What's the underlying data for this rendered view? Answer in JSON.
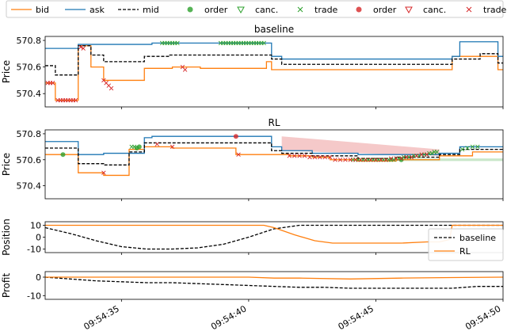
{
  "colors": {
    "bid": "#ff7f0e",
    "ask": "#1f77b4",
    "mid": "#000000",
    "green": "#2ca02c",
    "red": "#d62728"
  },
  "legend": {
    "items": [
      {
        "label": "bid",
        "kind": "line",
        "color": "#ff7f0e"
      },
      {
        "label": "ask",
        "kind": "line",
        "color": "#1f77b4"
      },
      {
        "label": "mid",
        "kind": "dash",
        "color": "#000000"
      },
      {
        "label": "order",
        "kind": "circle",
        "color": "#2ca02c"
      },
      {
        "label": "canc.",
        "kind": "tri",
        "color": "#2ca02c"
      },
      {
        "label": "trade",
        "kind": "x",
        "color": "#2ca02c"
      },
      {
        "label": "order",
        "kind": "circle",
        "color": "#d62728"
      },
      {
        "label": "canc.",
        "kind": "tri",
        "color": "#d62728"
      },
      {
        "label": "trade",
        "kind": "x",
        "color": "#d62728"
      }
    ]
  },
  "chart_data": [
    {
      "type": "line",
      "title": "baseline",
      "ylabel": "Price",
      "ylim": [
        570.3,
        570.83
      ],
      "yticks": [
        "570.4",
        "570.6",
        "570.8"
      ],
      "series": [
        {
          "name": "bid",
          "x": [
            32,
            32.4,
            32.4,
            33.3,
            33.3,
            33.8,
            33.8,
            34.3,
            34.3,
            35.9,
            35.9,
            37.0,
            37.0,
            38.1,
            38.1,
            40.7,
            40.7,
            40.9,
            40.9,
            48.0,
            48.0,
            49.8,
            49.8,
            50.0
          ],
          "y": [
            570.48,
            570.48,
            570.35,
            570.35,
            570.76,
            570.76,
            570.6,
            570.6,
            570.5,
            570.5,
            570.59,
            570.59,
            570.6,
            570.6,
            570.59,
            570.59,
            570.64,
            570.64,
            570.58,
            570.58,
            570.68,
            570.68,
            570.58,
            570.58
          ]
        },
        {
          "name": "ask",
          "x": [
            32,
            33.3,
            33.3,
            36.2,
            36.2,
            40.9,
            40.9,
            41.3,
            41.3,
            48.0,
            48.0,
            48.3,
            48.3,
            49.8,
            49.8,
            50.0
          ],
          "y": [
            570.74,
            570.74,
            570.77,
            570.77,
            570.78,
            570.78,
            570.68,
            570.68,
            570.66,
            570.66,
            570.68,
            570.68,
            570.79,
            570.79,
            570.68,
            570.68
          ]
        },
        {
          "name": "mid",
          "x": [
            32,
            32.4,
            32.4,
            33.3,
            33.3,
            33.8,
            33.8,
            34.3,
            34.3,
            35.9,
            35.9,
            36.2,
            36.2,
            36.9,
            36.9,
            40.9,
            40.9,
            41.3,
            41.3,
            48.0,
            48.0,
            49.1,
            49.1,
            49.8,
            49.8,
            50.0
          ],
          "y": [
            570.61,
            570.61,
            570.54,
            570.54,
            570.76,
            570.76,
            570.69,
            570.69,
            570.64,
            570.64,
            570.68,
            570.68,
            570.68,
            570.68,
            570.69,
            570.69,
            570.66,
            570.66,
            570.62,
            570.62,
            570.66,
            570.66,
            570.7,
            570.7,
            570.63,
            570.63
          ]
        }
      ],
      "markers": [
        {
          "series": "green trade",
          "kind": "x",
          "x": [
            36.6,
            36.7,
            36.8,
            36.9,
            37.0,
            37.1,
            37.2,
            38.9,
            39.0,
            39.1,
            39.2,
            39.3,
            39.4,
            39.5,
            39.6,
            39.7,
            39.8,
            39.9,
            40.0,
            40.1,
            40.2,
            40.3,
            40.4,
            40.5,
            40.6
          ],
          "y": [
            570.78,
            570.78,
            570.78,
            570.78,
            570.78,
            570.78,
            570.78,
            570.78,
            570.78,
            570.78,
            570.78,
            570.78,
            570.78,
            570.78,
            570.78,
            570.78,
            570.78,
            570.78,
            570.78,
            570.78,
            570.78,
            570.78,
            570.78,
            570.78,
            570.78
          ]
        },
        {
          "series": "red trade",
          "kind": "x",
          "x": [
            32.1,
            32.2,
            32.3,
            32.5,
            32.6,
            32.7,
            32.8,
            32.9,
            33.0,
            33.1,
            33.2,
            33.4,
            33.5,
            34.3,
            34.4,
            34.5,
            34.6,
            37.4,
            37.5
          ],
          "y": [
            570.48,
            570.48,
            570.48,
            570.35,
            570.35,
            570.35,
            570.35,
            570.35,
            570.35,
            570.35,
            570.35,
            570.75,
            570.74,
            570.5,
            570.48,
            570.46,
            570.44,
            570.6,
            570.58
          ]
        }
      ]
    },
    {
      "type": "line",
      "title": "RL",
      "ylabel": "Price",
      "ylim": [
        570.3,
        570.83
      ],
      "yticks": [
        "570.4",
        "570.6",
        "570.8"
      ],
      "series": [
        {
          "name": "bid",
          "x": [
            32,
            33.3,
            33.3,
            34.3,
            34.3,
            35.3,
            35.3,
            35.9,
            35.9,
            37.0,
            37.0,
            39.5,
            39.5,
            40.9,
            40.9,
            41.6,
            41.6,
            42.5,
            42.5,
            43.2,
            43.2,
            44.3,
            44.3,
            45.8,
            45.8,
            47.5,
            47.5,
            48.8,
            48.8,
            50.0
          ],
          "y": [
            570.64,
            570.64,
            570.5,
            570.5,
            570.48,
            570.48,
            570.68,
            570.68,
            570.7,
            570.7,
            570.69,
            570.69,
            570.64,
            570.64,
            570.64,
            570.64,
            570.63,
            570.63,
            570.62,
            570.62,
            570.6,
            570.6,
            570.59,
            570.59,
            570.6,
            570.6,
            570.63,
            570.63,
            570.66,
            570.66
          ]
        },
        {
          "name": "ask",
          "x": [
            32,
            33.3,
            33.3,
            34.3,
            34.3,
            35.9,
            35.9,
            36.2,
            36.2,
            40.9,
            40.9,
            41.3,
            41.3,
            42.5,
            42.5,
            44.3,
            44.3,
            47.5,
            47.5,
            48.3,
            48.3,
            50.0
          ],
          "y": [
            570.74,
            570.74,
            570.64,
            570.64,
            570.65,
            570.65,
            570.77,
            570.77,
            570.78,
            570.78,
            570.7,
            570.7,
            570.67,
            570.67,
            570.65,
            570.65,
            570.64,
            570.64,
            570.65,
            570.65,
            570.7,
            570.7
          ]
        },
        {
          "name": "mid",
          "x": [
            32,
            33.3,
            33.3,
            34.3,
            34.3,
            35.3,
            35.3,
            35.9,
            35.9,
            36.2,
            36.2,
            40.9,
            40.9,
            41.3,
            41.3,
            42.5,
            42.5,
            44.3,
            44.3,
            45.8,
            45.8,
            47.5,
            47.5,
            48.3,
            48.3,
            50.0
          ],
          "y": [
            570.69,
            570.69,
            570.57,
            570.57,
            570.56,
            570.56,
            570.66,
            570.66,
            570.73,
            570.73,
            570.73,
            570.73,
            570.67,
            570.67,
            570.65,
            570.65,
            570.63,
            570.63,
            570.61,
            570.61,
            570.62,
            570.62,
            570.64,
            570.64,
            570.68,
            570.68
          ]
        }
      ],
      "markers": [
        {
          "series": "green order",
          "kind": "circle",
          "x": [
            32.7,
            35.6,
            35.7,
            46.0
          ],
          "y": [
            570.64,
            570.69,
            570.7,
            570.6
          ]
        },
        {
          "series": "green trade",
          "kind": "x",
          "x": [
            35.4,
            35.5,
            44.1,
            44.2,
            44.3,
            44.4,
            44.5,
            44.6,
            44.7,
            44.8,
            44.9,
            45.0,
            45.1,
            45.2,
            45.3,
            45.4,
            45.5,
            45.6,
            45.7,
            45.8,
            45.9,
            46.0,
            46.1,
            46.2,
            46.3,
            46.4,
            46.5,
            46.6,
            46.7,
            46.8,
            46.9,
            47.0,
            47.1,
            47.2,
            47.3,
            47.4,
            48.4,
            48.6,
            48.8,
            49.0
          ],
          "y": [
            570.7,
            570.7,
            570.6,
            570.6,
            570.6,
            570.6,
            570.6,
            570.6,
            570.6,
            570.6,
            570.6,
            570.6,
            570.6,
            570.6,
            570.6,
            570.6,
            570.6,
            570.6,
            570.6,
            570.61,
            570.61,
            570.61,
            570.62,
            570.62,
            570.62,
            570.62,
            570.63,
            570.63,
            570.63,
            570.64,
            570.64,
            570.64,
            570.65,
            570.65,
            570.66,
            570.66,
            570.68,
            570.69,
            570.7,
            570.7
          ]
        },
        {
          "series": "red order",
          "kind": "circle",
          "x": [
            39.5
          ],
          "y": [
            570.78
          ]
        },
        {
          "series": "red trade",
          "kind": "x",
          "x": [
            34.3,
            36.4,
            37.0,
            39.6,
            41.6,
            41.8,
            42.0,
            42.2,
            42.4,
            42.6,
            42.8,
            43.0,
            43.2,
            43.4,
            43.6,
            43.8,
            44.0,
            44.2,
            44.4,
            44.6,
            44.8,
            45.0,
            45.2,
            45.4,
            45.6,
            45.8,
            46.0,
            46.2,
            46.4,
            46.6,
            46.8,
            47.0
          ],
          "y": [
            570.5,
            570.72,
            570.7,
            570.64,
            570.63,
            570.63,
            570.63,
            570.63,
            570.62,
            570.62,
            570.62,
            570.62,
            570.62,
            570.6,
            570.6,
            570.6,
            570.6,
            570.6,
            570.6,
            570.6,
            570.6,
            570.6,
            570.6,
            570.6,
            570.61,
            570.61,
            570.61,
            570.62,
            570.62,
            570.63,
            570.64,
            570.64
          ]
        }
      ],
      "bands": [
        {
          "color": "#d62728",
          "x": [
            41.3,
            47.5
          ],
          "y_low": [
            570.67,
            570.63
          ],
          "y_high": [
            570.78,
            570.68
          ]
        },
        {
          "color": "#2ca02c",
          "x": [
            44.3,
            50.0
          ],
          "y_low": [
            570.59,
            570.59
          ],
          "y_high": [
            570.61,
            570.61
          ]
        }
      ]
    },
    {
      "type": "line",
      "title": "",
      "ylabel": "Position",
      "ylim": [
        -13,
        13
      ],
      "yticks": [
        "-10",
        "0",
        "10"
      ],
      "legend": {
        "placement": "right",
        "entries": [
          "baseline",
          "RL"
        ]
      },
      "series": [
        {
          "name": "baseline",
          "x": [
            32,
            33,
            34,
            35,
            36,
            37,
            38,
            39,
            40,
            41,
            42,
            43,
            44,
            45,
            46,
            47,
            48,
            49,
            50
          ],
          "y": [
            8,
            3,
            -3,
            -8,
            -10,
            -10,
            -9,
            -6,
            0,
            7,
            10,
            10,
            10,
            10,
            10,
            10,
            10,
            10,
            10
          ]
        },
        {
          "name": "RL",
          "x": [
            32,
            34,
            36,
            38,
            40,
            40.6,
            41,
            41.8,
            42.6,
            43.3,
            44,
            45,
            46,
            47,
            47.5,
            47.9,
            48,
            50
          ],
          "y": [
            10,
            10,
            10,
            10,
            10,
            10,
            8,
            2,
            -3,
            -5,
            -5,
            -5,
            -5,
            -4,
            -4,
            -2,
            10,
            10
          ]
        }
      ]
    },
    {
      "type": "line",
      "title": "",
      "ylabel": "Profit",
      "ylim": [
        -12,
        3
      ],
      "yticks": [
        "-10",
        "0"
      ],
      "xticks": [
        "09:54:35",
        "09:54:40",
        "09:54:45",
        "09:54:50"
      ],
      "series": [
        {
          "name": "baseline",
          "x": [
            32,
            33,
            34,
            35,
            36,
            37,
            38,
            39,
            40,
            41,
            42,
            43,
            44,
            45,
            46,
            47,
            48,
            49,
            50
          ],
          "y": [
            0,
            -1,
            -2,
            -2.5,
            -3,
            -3,
            -3.5,
            -4,
            -4.5,
            -5,
            -5.5,
            -5.5,
            -6,
            -6,
            -6,
            -6,
            -6,
            -5,
            -5
          ]
        },
        {
          "name": "RL",
          "x": [
            32,
            35,
            38,
            40,
            41,
            42,
            44,
            46,
            48,
            50
          ],
          "y": [
            0,
            0,
            0,
            0,
            -0.5,
            -0.5,
            -1,
            -0.5,
            -0.2,
            0
          ]
        }
      ]
    }
  ]
}
